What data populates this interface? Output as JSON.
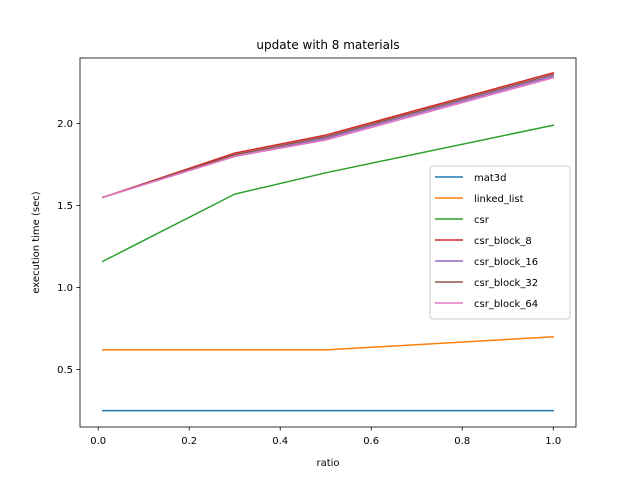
{
  "chart_data": {
    "type": "line",
    "title": "update with 8 materials",
    "xlabel": "ratio",
    "ylabel": "execution time (sec)",
    "xlim": [
      -0.04,
      1.05
    ],
    "ylim": [
      0.15,
      2.4
    ],
    "xticks": [
      0.0,
      0.2,
      0.4,
      0.6,
      0.8,
      1.0
    ],
    "xtick_labels": [
      "0.0",
      "0.2",
      "0.4",
      "0.6",
      "0.8",
      "1.0"
    ],
    "yticks": [
      0.5,
      1.0,
      1.5,
      2.0
    ],
    "ytick_labels": [
      "0.5",
      "1.0",
      "1.5",
      "2.0"
    ],
    "grid": false,
    "legend_position": "center-right",
    "x": [
      0.01,
      0.3,
      0.5,
      1.0
    ],
    "series": [
      {
        "name": "mat3d",
        "color": "#1f77b4",
        "values": [
          0.25,
          0.25,
          0.25,
          0.25
        ]
      },
      {
        "name": "linked_list",
        "color": "#ff7f0e",
        "values": [
          0.62,
          0.62,
          0.62,
          0.7
        ]
      },
      {
        "name": "csr",
        "color": "#2ca02c",
        "values": [
          1.16,
          1.57,
          1.7,
          1.99
        ]
      },
      {
        "name": "csr_block_8",
        "color": "#d62728",
        "values": [
          1.55,
          1.82,
          1.93,
          2.31
        ]
      },
      {
        "name": "csr_block_16",
        "color": "#9467bd",
        "values": [
          1.55,
          1.8,
          1.91,
          2.29
        ]
      },
      {
        "name": "csr_block_32",
        "color": "#8c564b",
        "values": [
          1.55,
          1.81,
          1.92,
          2.3
        ]
      },
      {
        "name": "csr_block_64",
        "color": "#e377c2",
        "values": [
          1.55,
          1.8,
          1.9,
          2.28
        ]
      }
    ]
  }
}
